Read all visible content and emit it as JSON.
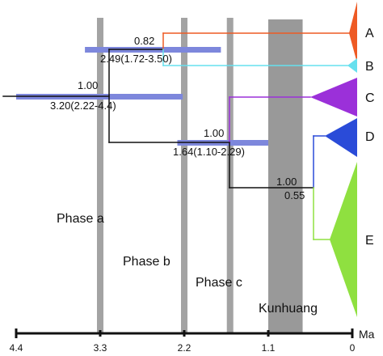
{
  "colors": {
    "A": "#ee5a24",
    "B": "#66e0ee",
    "C": "#9b30d9",
    "D": "#2a4bd8",
    "E": "#8fe040",
    "hpd_bar": "#7d87dc",
    "phase_band": "#a3a3a3",
    "kunhuang_band": "#999999",
    "branch": "#111111"
  },
  "nodes": [
    {
      "id": "AB",
      "support": "0.82",
      "age_label": "2.49(1.72-3.50)",
      "age": 2.49,
      "hpd": [
        1.72,
        3.5
      ]
    },
    {
      "id": "root",
      "support": "1.00",
      "age_label": "3.20(2.22-4.4)",
      "age": 3.2,
      "hpd": [
        2.22,
        4.4
      ]
    },
    {
      "id": "CDE",
      "support": "1.00",
      "age_label": "1.64(1.10-2.29)",
      "age": 1.64,
      "hpd": [
        1.1,
        2.29
      ]
    },
    {
      "id": "DE",
      "support": "1.00",
      "age_label": "0.55",
      "age": 0.55
    }
  ],
  "clades": [
    {
      "id": "A",
      "label": "A"
    },
    {
      "id": "B",
      "label": "B"
    },
    {
      "id": "C",
      "label": "C"
    },
    {
      "id": "D",
      "label": "D"
    },
    {
      "id": "E",
      "label": "E"
    }
  ],
  "phases": [
    {
      "label": "Phase a",
      "age": 3.3
    },
    {
      "label": "Phase b",
      "age": 2.2
    },
    {
      "label": "Phase c",
      "age": 1.6
    }
  ],
  "kunhuang": {
    "label": "Kunhuang",
    "range": [
      0.65,
      1.1
    ]
  },
  "axis": {
    "unit": "Ma",
    "ticks": [
      {
        "value": 4.4,
        "label": "4.4"
      },
      {
        "value": 3.3,
        "label": "3.3"
      },
      {
        "value": 2.2,
        "label": "2.2"
      },
      {
        "value": 1.1,
        "label": "1.1"
      },
      {
        "value": 0,
        "label": "0"
      }
    ]
  }
}
